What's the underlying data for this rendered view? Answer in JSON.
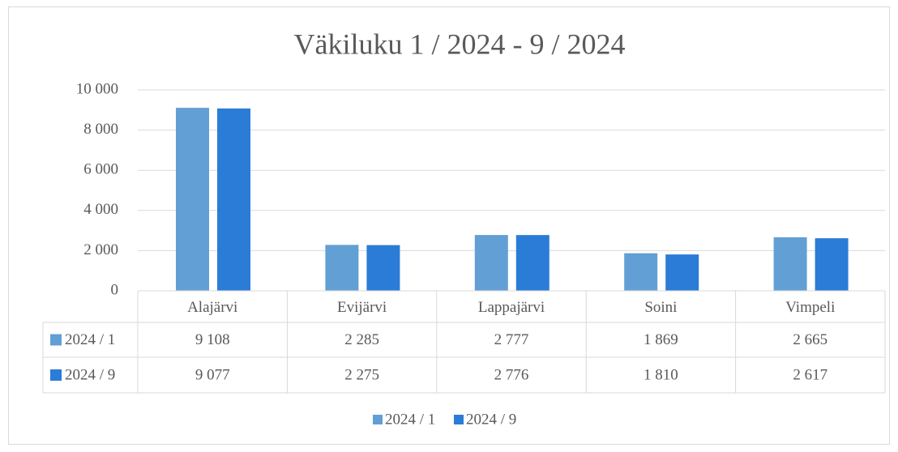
{
  "chart_data": {
    "type": "bar",
    "title": "Väkiluku 1 / 2024 - 9 / 2024",
    "categories": [
      "Alajärvi",
      "Evijärvi",
      "Lappajärvi",
      "Soini",
      "Vimpeli"
    ],
    "series": [
      {
        "name": "2024 / 1",
        "color": "#629fd4",
        "values": [
          9108,
          2285,
          2777,
          1869,
          2665
        ],
        "value_labels": [
          "9 108",
          "2 285",
          "2 777",
          "1 869",
          "2 665"
        ]
      },
      {
        "name": "2024 / 9",
        "color": "#2b7cd6",
        "values": [
          9077,
          2275,
          2776,
          1810,
          2617
        ],
        "value_labels": [
          "9 077",
          "2 275",
          "2 776",
          "1 810",
          "2 617"
        ]
      }
    ],
    "ylim": [
      0,
      10000
    ],
    "yticks": [
      0,
      {
        "value": 2000,
        "label": "2 000"
      },
      {
        "value": 4000,
        "label": "4 000"
      },
      {
        "value": 6000,
        "label": "6 000"
      },
      {
        "value": 8000,
        "label": "8 000"
      },
      {
        "value": 10000,
        "label": "10 000"
      }
    ],
    "grid": true,
    "legend": "bottom"
  }
}
